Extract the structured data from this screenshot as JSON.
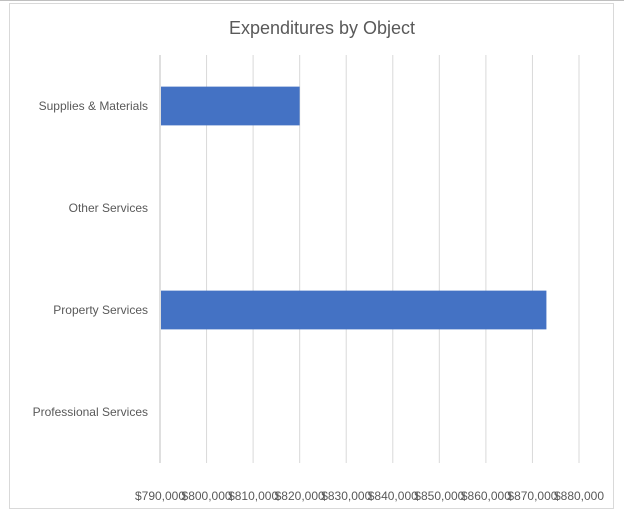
{
  "chart_data": {
    "type": "bar",
    "orientation": "horizontal",
    "title": "Expenditures by Object",
    "categories": [
      "Professional Services",
      "Property Services",
      "Other Services",
      "Supplies & Materials"
    ],
    "values": [
      null,
      873000,
      null,
      820000
    ],
    "xlim": [
      790000,
      880000
    ],
    "x_ticks": [
      790000,
      800000,
      810000,
      820000,
      830000,
      840000,
      850000,
      860000,
      870000,
      880000
    ],
    "x_tick_labels": [
      "$790,000",
      "$800,000",
      "$810,000",
      "$820,000",
      "$830,000",
      "$840,000",
      "$850,000",
      "$860,000",
      "$870,000",
      "$880,000"
    ],
    "bar_color": "#4472c4",
    "grid": true,
    "legend": "none"
  }
}
